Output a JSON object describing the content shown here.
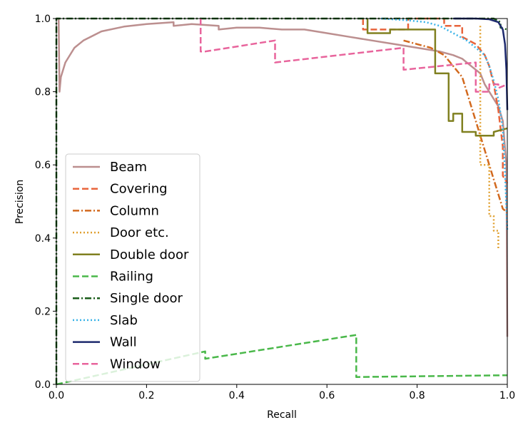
{
  "chart_data": {
    "type": "line",
    "title": "",
    "xlabel": "Recall",
    "ylabel": "Precision",
    "xlim": [
      0.0,
      1.0
    ],
    "ylim": [
      0.0,
      1.0
    ],
    "x_ticks": [
      "0.0",
      "0.2",
      "0.4",
      "0.6",
      "0.8",
      "1.0"
    ],
    "y_ticks": [
      "0.0",
      "0.2",
      "0.4",
      "0.6",
      "0.8",
      "1.0"
    ],
    "grid": false,
    "legend_position": "center-left",
    "series": [
      {
        "name": "Beam",
        "color": "#bc8f8f",
        "dash": "solid",
        "x": [
          0.0,
          0.005,
          0.007,
          0.01,
          0.02,
          0.04,
          0.06,
          0.1,
          0.15,
          0.2,
          0.26,
          0.26,
          0.3,
          0.36,
          0.36,
          0.4,
          0.45,
          0.5,
          0.55,
          0.6,
          0.65,
          0.7,
          0.75,
          0.8,
          0.85,
          0.88,
          0.9,
          0.92,
          0.94,
          0.95,
          0.96,
          0.97,
          0.98,
          0.99,
          0.998,
          1.0
        ],
        "y": [
          1.0,
          1.0,
          0.8,
          0.84,
          0.88,
          0.92,
          0.94,
          0.965,
          0.978,
          0.985,
          0.99,
          0.98,
          0.985,
          0.98,
          0.97,
          0.975,
          0.975,
          0.97,
          0.97,
          0.96,
          0.95,
          0.94,
          0.93,
          0.92,
          0.91,
          0.9,
          0.89,
          0.87,
          0.85,
          0.82,
          0.8,
          0.78,
          0.76,
          0.72,
          0.6,
          0.13
        ]
      },
      {
        "name": "Covering",
        "color": "#e8643c",
        "dash": "dashed",
        "x": [
          0.68,
          0.68,
          0.78,
          0.78,
          0.86,
          0.86,
          0.9,
          0.9,
          0.93,
          0.95,
          0.96,
          0.97,
          0.98,
          0.99,
          0.99,
          1.0
        ],
        "y": [
          1.0,
          0.97,
          0.97,
          1.0,
          1.0,
          0.98,
          0.98,
          0.95,
          0.93,
          0.9,
          0.87,
          0.82,
          0.75,
          0.65,
          0.57,
          0.55
        ]
      },
      {
        "name": "Column",
        "color": "#d2691e",
        "dash": "dashdot",
        "x": [
          0.77,
          0.8,
          0.83,
          0.86,
          0.88,
          0.9,
          0.91,
          0.92,
          0.93,
          0.94,
          0.95,
          0.96,
          0.97,
          0.98,
          0.99,
          1.0
        ],
        "y": [
          0.94,
          0.93,
          0.92,
          0.9,
          0.87,
          0.84,
          0.8,
          0.76,
          0.72,
          0.68,
          0.64,
          0.6,
          0.56,
          0.52,
          0.48,
          0.47
        ]
      },
      {
        "name": "Door etc.",
        "color": "#e0a030",
        "dash": "dotted",
        "x": [
          0.94,
          0.94,
          0.96,
          0.96,
          0.97,
          0.97,
          0.98,
          0.98
        ],
        "y": [
          0.98,
          0.6,
          0.6,
          0.46,
          0.46,
          0.42,
          0.42,
          0.37
        ]
      },
      {
        "name": "Double door",
        "color": "#808020",
        "dash": "solid",
        "x": [
          0.69,
          0.69,
          0.74,
          0.74,
          0.84,
          0.84,
          0.84,
          0.87,
          0.87,
          0.88,
          0.88,
          0.9,
          0.9,
          0.93,
          0.93,
          0.97,
          0.97,
          1.0
        ],
        "y": [
          1.0,
          0.96,
          0.96,
          0.97,
          0.97,
          0.96,
          0.85,
          0.85,
          0.72,
          0.72,
          0.74,
          0.74,
          0.69,
          0.69,
          0.68,
          0.68,
          0.69,
          0.7
        ]
      },
      {
        "name": "Railing",
        "color": "#4ab84a",
        "dash": "dashed",
        "x": [
          0.0,
          0.33,
          0.33,
          0.665,
          0.665,
          1.0
        ],
        "y": [
          0.0,
          0.09,
          0.07,
          0.135,
          0.02,
          0.025
        ]
      },
      {
        "name": "Single door",
        "color": "#1a5c1a",
        "dash": "dashdot",
        "x": [
          0.0,
          0.0,
          0.97,
          0.985,
          0.985,
          1.0
        ],
        "y": [
          0.0,
          1.0,
          1.0,
          0.99,
          0.975,
          0.97
        ]
      },
      {
        "name": "Slab",
        "color": "#3cb4e8",
        "dash": "dotted",
        "x": [
          0.72,
          0.78,
          0.82,
          0.85,
          0.88,
          0.91,
          0.93,
          0.95,
          0.96,
          0.97,
          0.98,
          0.99,
          0.995,
          1.0
        ],
        "y": [
          1.0,
          0.995,
          0.99,
          0.98,
          0.96,
          0.94,
          0.92,
          0.9,
          0.87,
          0.83,
          0.78,
          0.7,
          0.58,
          0.42
        ]
      },
      {
        "name": "Wall",
        "color": "#1e2a6e",
        "dash": "solid",
        "x": [
          0.88,
          0.93,
          0.96,
          0.98,
          0.99,
          0.995,
          0.998,
          1.0
        ],
        "y": [
          1.0,
          1.0,
          0.998,
          0.99,
          0.97,
          0.93,
          0.86,
          0.75
        ]
      },
      {
        "name": "Window",
        "color": "#e8649c",
        "dash": "dashed",
        "x": [
          0.32,
          0.32,
          0.33,
          0.485,
          0.485,
          0.77,
          0.77,
          0.93,
          0.93,
          0.96,
          0.96,
          0.98,
          0.98,
          1.0
        ],
        "y": [
          1.0,
          0.91,
          0.91,
          0.94,
          0.88,
          0.92,
          0.86,
          0.88,
          0.8,
          0.8,
          0.82,
          0.82,
          0.81,
          0.82
        ]
      }
    ]
  }
}
